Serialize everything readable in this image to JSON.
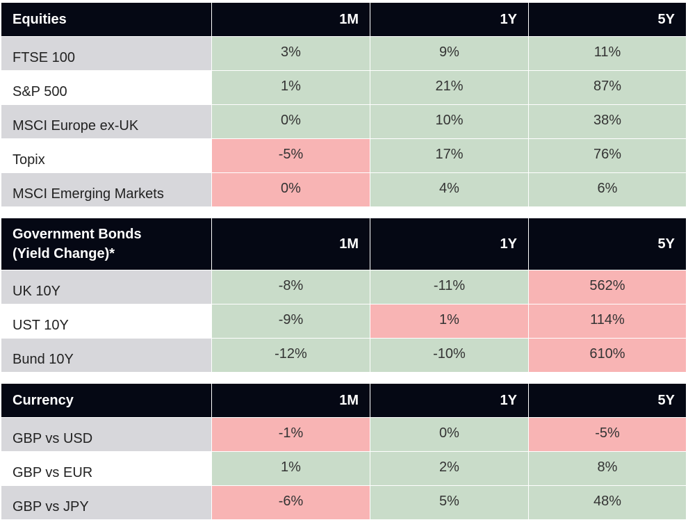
{
  "sections": [
    {
      "header": {
        "label": "Equities",
        "periods": [
          "1M",
          "1Y",
          "5Y"
        ]
      },
      "rows": [
        {
          "label": "FTSE 100",
          "values": [
            "3%",
            "9%",
            "11%"
          ],
          "status": [
            "pos",
            "pos",
            "pos"
          ]
        },
        {
          "label": "S&P 500",
          "values": [
            "1%",
            "21%",
            "87%"
          ],
          "status": [
            "pos",
            "pos",
            "pos"
          ]
        },
        {
          "label": "MSCI Europe ex-UK",
          "values": [
            "0%",
            "10%",
            "38%"
          ],
          "status": [
            "pos",
            "pos",
            "pos"
          ]
        },
        {
          "label": "Topix",
          "values": [
            "-5%",
            "17%",
            "76%"
          ],
          "status": [
            "neg",
            "pos",
            "pos"
          ]
        },
        {
          "label": "MSCI Emerging Markets",
          "values": [
            "0%",
            "4%",
            "6%"
          ],
          "status": [
            "neg",
            "pos",
            "pos"
          ]
        }
      ]
    },
    {
      "header": {
        "label_line1": "Government Bonds",
        "label_line2": "(Yield Change)*",
        "periods": [
          "1M",
          "1Y",
          "5Y"
        ]
      },
      "rows": [
        {
          "label": "UK 10Y",
          "values": [
            "-8%",
            "-11%",
            "562%"
          ],
          "status": [
            "pos",
            "pos",
            "neg"
          ]
        },
        {
          "label": "UST 10Y",
          "values": [
            "-9%",
            "1%",
            "114%"
          ],
          "status": [
            "pos",
            "neg",
            "neg"
          ]
        },
        {
          "label": "Bund 10Y",
          "values": [
            "-12%",
            "-10%",
            "610%"
          ],
          "status": [
            "pos",
            "pos",
            "neg"
          ]
        }
      ]
    },
    {
      "header": {
        "label": "Currency",
        "periods": [
          "1M",
          "1Y",
          "5Y"
        ]
      },
      "rows": [
        {
          "label": "GBP vs USD",
          "values": [
            "-1%",
            "0%",
            "-5%"
          ],
          "status": [
            "neg",
            "pos",
            "neg"
          ]
        },
        {
          "label": "GBP vs EUR",
          "values": [
            "1%",
            "2%",
            "8%"
          ],
          "status": [
            "pos",
            "pos",
            "pos"
          ]
        },
        {
          "label": "GBP vs JPY",
          "values": [
            "-6%",
            "5%",
            "48%"
          ],
          "status": [
            "neg",
            "pos",
            "pos"
          ]
        }
      ]
    }
  ],
  "colors": {
    "header_bg": "#050814",
    "positive": "#c9dcc9",
    "negative": "#f8b4b4",
    "label_gray": "#d7d7db"
  }
}
